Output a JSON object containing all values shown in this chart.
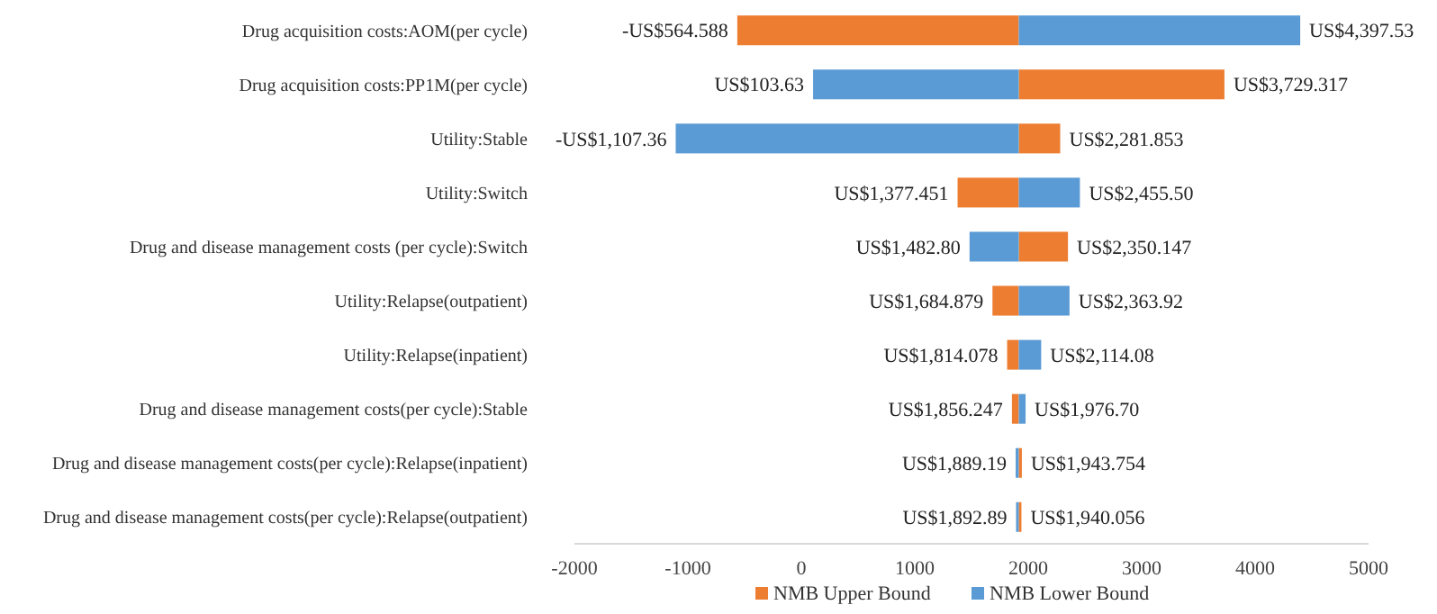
{
  "chart_data": {
    "type": "bar",
    "orientation": "horizontal",
    "categories": [
      "Drug acquisition costs:AOM(per cycle)",
      "Drug acquisition costs:PP1M(per cycle)",
      "Utility:Stable",
      "Utility:Switch",
      "Drug and disease management costs (per cycle):Switch",
      "Utility:Relapse(outpatient)",
      "Utility:Relapse(inpatient)",
      "Drug and disease management costs(per cycle):Stable",
      "Drug and disease management costs(per cycle):Relapse(inpatient)",
      "Drug and disease management costs(per cycle):Relapse(outpatient)"
    ],
    "series": [
      {
        "name": "NMB Upper Bound",
        "color": "#ed7d31",
        "base": [
          1916.5,
          1916.5,
          1916.5,
          1916.5,
          1916.5,
          1916.5,
          1916.5,
          1916.5,
          1916.5,
          1916.5
        ],
        "values": [
          -2481.088,
          1812.817,
          365.353,
          -539.049,
          433.647,
          -231.621,
          -102.422,
          -60.253,
          27.254,
          23.556
        ],
        "value_labels": [
          "-US$564.588",
          "US$3,729.317",
          "US$2,281.853",
          "US$1,377.451",
          "US$2,350.147",
          "US$1,684.879",
          "US$1,814.078",
          "US$1,856.247",
          "US$1,943.754",
          "US$1,940.056"
        ]
      },
      {
        "name": "NMB Lower Bound",
        "color": "#5b9bd5",
        "base": [
          1916.5,
          1916.5,
          1916.5,
          1916.5,
          1916.5,
          1916.5,
          1916.5,
          1916.5,
          1916.5,
          1916.5
        ],
        "values": [
          2481.03,
          -1812.87,
          -3023.86,
          539,
          -433.7,
          447.42,
          197.58,
          60.2,
          -27.31,
          -23.61
        ],
        "value_labels": [
          "US$4,397.53",
          "US$103.63",
          "-US$1,107.36",
          "US$2,455.50",
          "US$1,482.80",
          "US$2,363.92",
          "US$2,114.08",
          "US$1,976.70",
          "US$1,889.19",
          "US$1,892.89"
        ]
      }
    ],
    "xlim": [
      -2000,
      5000
    ],
    "xticks": [
      -2000,
      -1000,
      0,
      1000,
      2000,
      3000,
      4000,
      5000
    ],
    "grid": false,
    "legend": "bottom"
  }
}
